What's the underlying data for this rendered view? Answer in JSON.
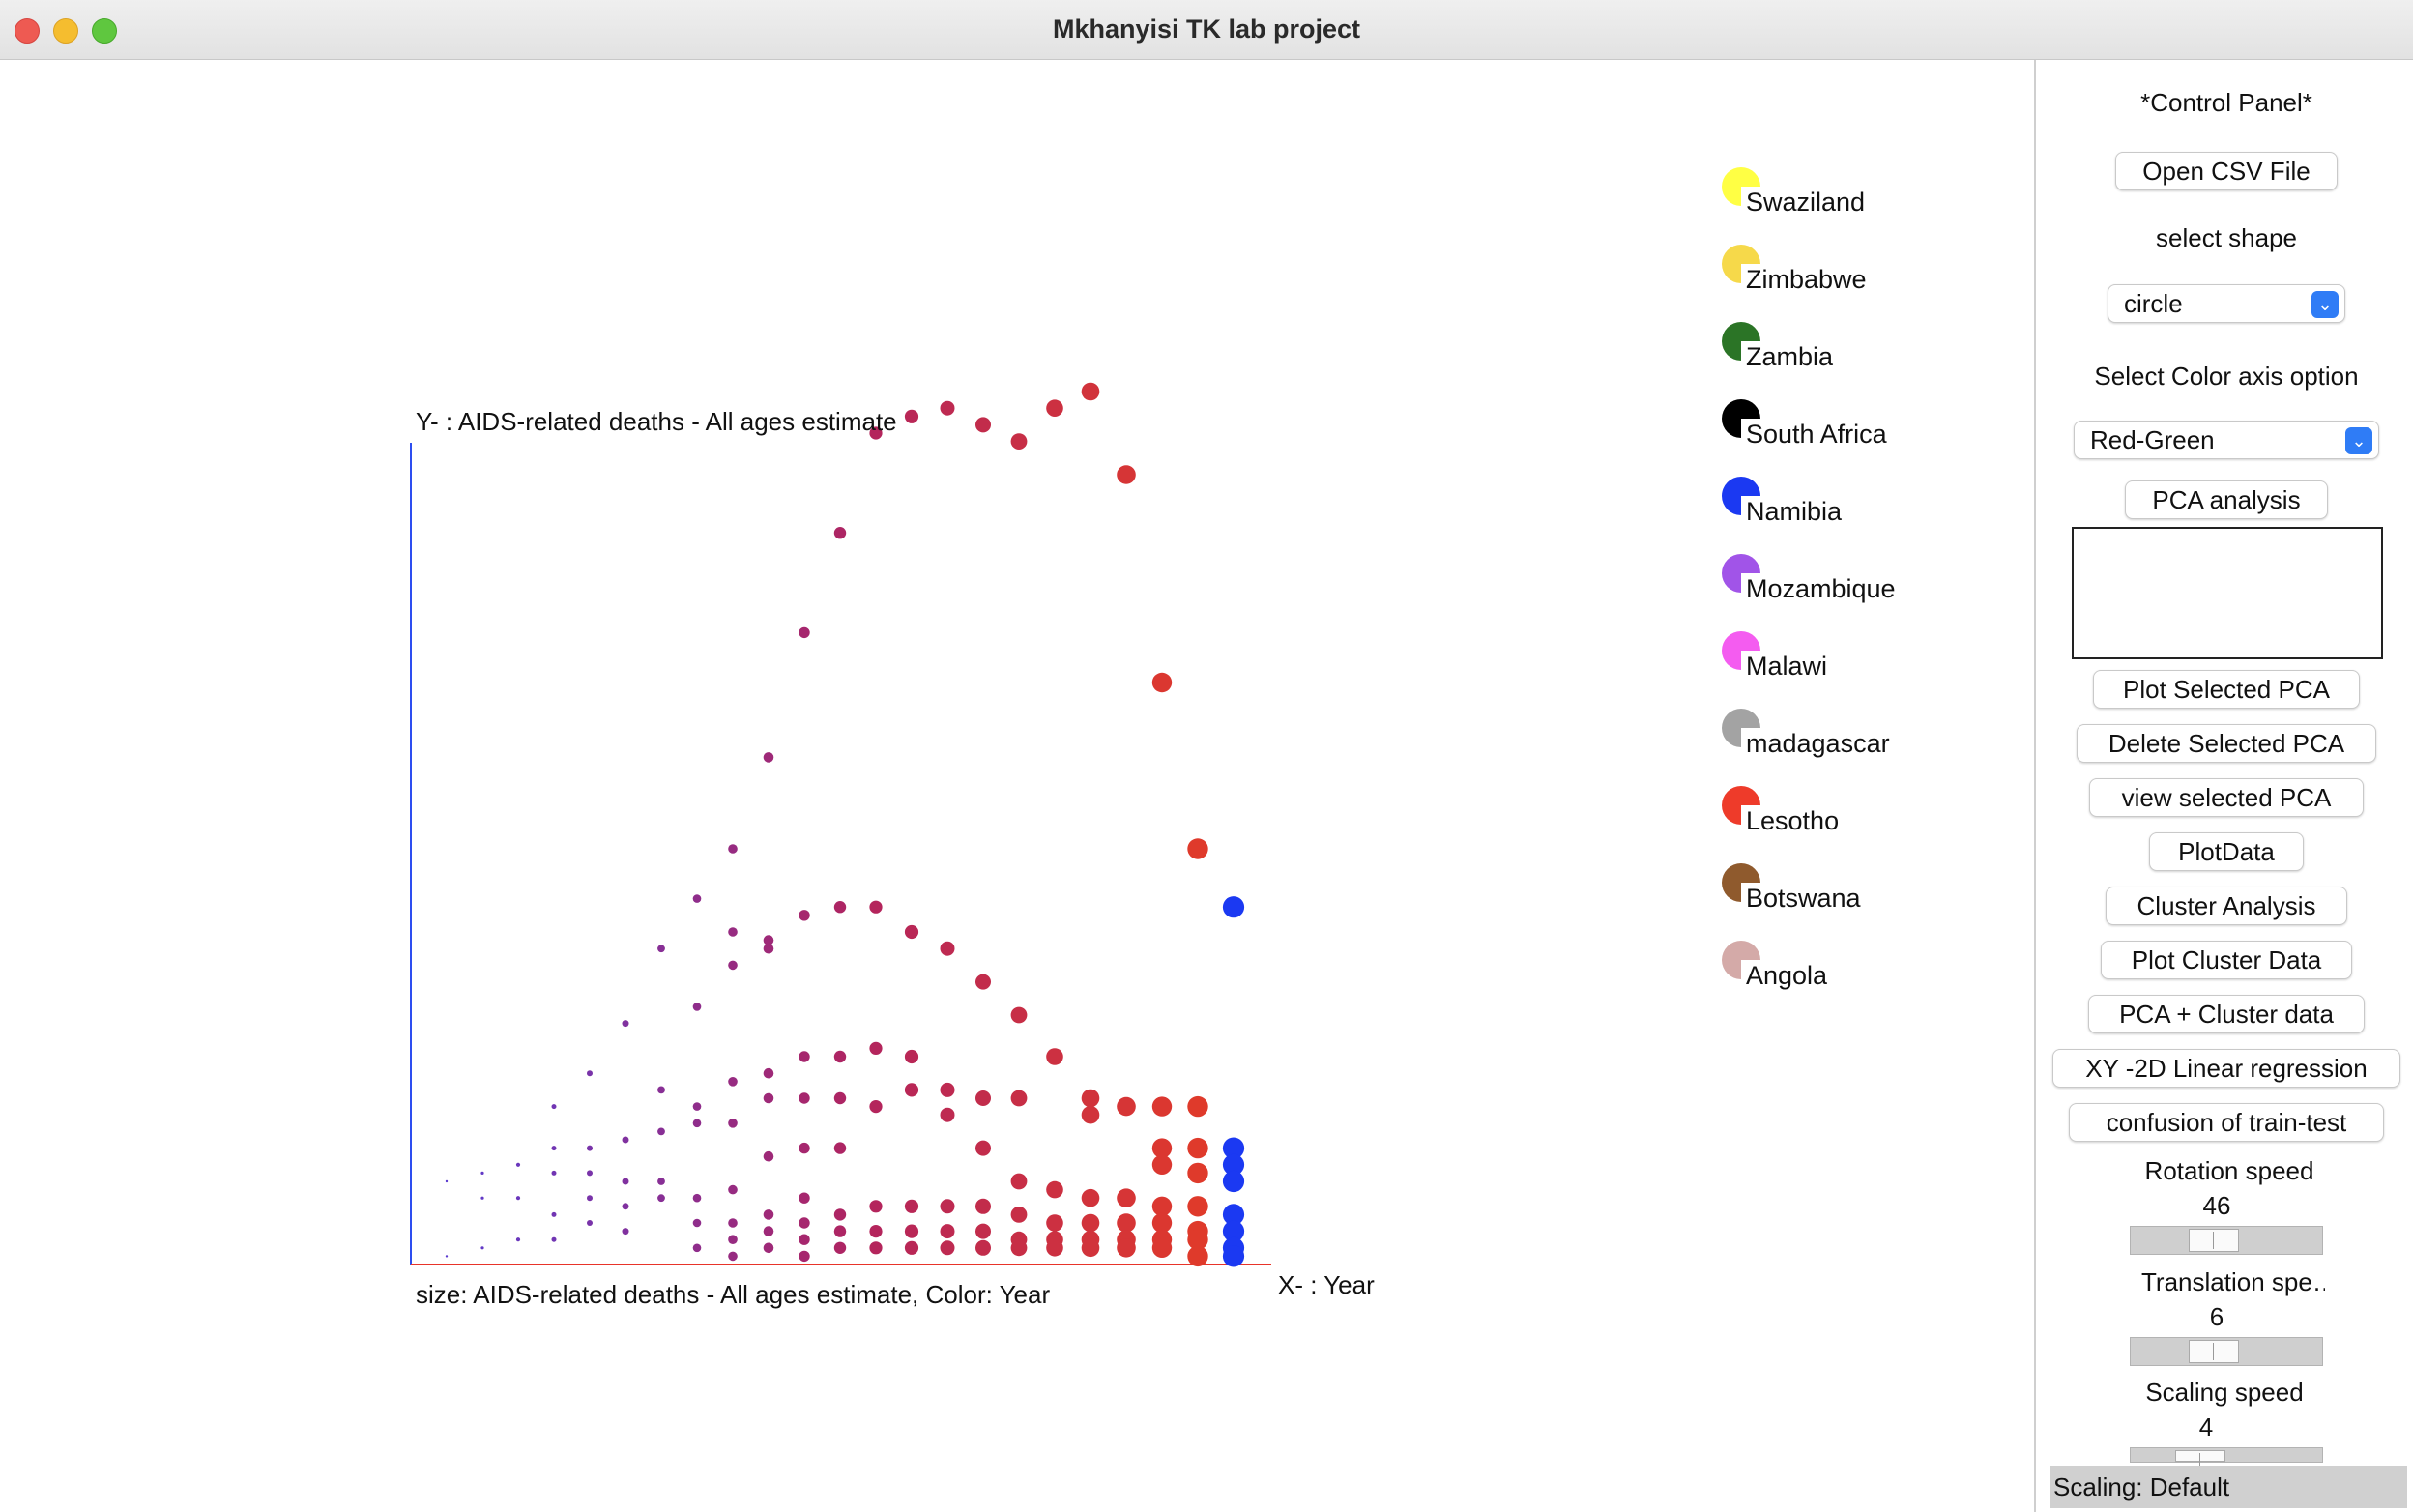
{
  "window": {
    "title": "Mkhanyisi TK lab project"
  },
  "plot": {
    "y_axis_label": "Y- : AIDS-related deaths - All ages estimate",
    "x_axis_label": "X- : Year",
    "caption": "size: AIDS-related deaths - All ages estimate, Color:  Year"
  },
  "legend": [
    {
      "name": "Swaziland",
      "color": "#ffff44"
    },
    {
      "name": "Zimbabwe",
      "color": "#f6d94a"
    },
    {
      "name": "Zambia",
      "color": "#2b7426"
    },
    {
      "name": "South Africa",
      "color": "#000000"
    },
    {
      "name": "Namibia",
      "color": "#1b39f2"
    },
    {
      "name": "Mozambique",
      "color": "#a154e8"
    },
    {
      "name": "Malawi",
      "color": "#f45cf0"
    },
    {
      "name": "madagascar",
      "color": "#a3a3a3"
    },
    {
      "name": "Lesotho",
      "color": "#ee3b2a"
    },
    {
      "name": "Botswana",
      "color": "#8f5a2d"
    },
    {
      "name": "Angola",
      "color": "#d4aaa8"
    }
  ],
  "panel": {
    "heading": "*Control Panel*",
    "open_csv": "Open CSV File",
    "shape_label": "select shape",
    "shape_value": "circle",
    "color_label": "Select Color axis option",
    "color_value": "Red-Green",
    "pca_analysis": "PCA analysis",
    "plot_selected_pca": "Plot Selected PCA",
    "delete_selected_pca": "Delete Selected PCA",
    "view_selected_pca": "view selected PCA",
    "plot_data": "PlotData",
    "cluster_analysis": "Cluster Analysis",
    "plot_cluster_data": "Plot Cluster Data",
    "pca_cluster_data": "PCA + Cluster data",
    "xy_regression": "XY -2D Linear regression",
    "confusion": "confusion of train-test",
    "rotation_label": "Rotation speed",
    "rotation_value": 46,
    "translation_label": "Translation spe…",
    "translation_value": 6,
    "scaling_label": "Scaling speed",
    "scaling_value": 4,
    "status": "Scaling: Default"
  },
  "chart_data": {
    "type": "scatter",
    "xlabel": "X- : Year",
    "ylabel": "Y- : AIDS-related deaths - All ages estimate",
    "size_encoding": "AIDS-related deaths - All ages estimate",
    "color_encoding": "Year",
    "color_scale": [
      "#5b3bd0",
      "#b2245e",
      "#e03a2a",
      "#1b39f2"
    ],
    "y_unit": "fraction of axis height",
    "columns": [
      {
        "col": 1,
        "y": [
          0.1,
          0.01
        ]
      },
      {
        "col": 2,
        "y": [
          0.11,
          0.08,
          0.02
        ]
      },
      {
        "col": 3,
        "y": [
          0.12,
          0.08,
          0.03
        ]
      },
      {
        "col": 4,
        "y": [
          0.19,
          0.14,
          0.11,
          0.06,
          0.03
        ]
      },
      {
        "col": 5,
        "y": [
          0.23,
          0.14,
          0.11,
          0.08,
          0.05
        ]
      },
      {
        "col": 6,
        "y": [
          0.29,
          0.15,
          0.1,
          0.07,
          0.04
        ]
      },
      {
        "col": 7,
        "y": [
          0.38,
          0.21,
          0.16,
          0.1,
          0.08
        ]
      },
      {
        "col": 8,
        "y": [
          0.44,
          0.31,
          0.19,
          0.17,
          0.08,
          0.05,
          0.02
        ]
      },
      {
        "col": 9,
        "y": [
          0.5,
          0.4,
          0.36,
          0.22,
          0.17,
          0.09,
          0.05,
          0.03,
          0.01
        ]
      },
      {
        "col": 10,
        "y": [
          0.61,
          0.38,
          0.39,
          0.23,
          0.2,
          0.13,
          0.06,
          0.04,
          0.02
        ]
      },
      {
        "col": 11,
        "y": [
          0.76,
          0.42,
          0.25,
          0.2,
          0.14,
          0.08,
          0.05,
          0.03,
          0.01
        ]
      },
      {
        "col": 12,
        "y": [
          0.88,
          0.43,
          0.25,
          0.2,
          0.14,
          0.06,
          0.04,
          0.02
        ]
      },
      {
        "col": 13,
        "y": [
          1.0,
          0.43,
          0.26,
          0.19,
          0.07,
          0.04,
          0.02
        ]
      },
      {
        "col": 14,
        "y": [
          1.02,
          0.4,
          0.25,
          0.21,
          0.07,
          0.04,
          0.02
        ]
      },
      {
        "col": 15,
        "y": [
          1.03,
          0.38,
          0.21,
          0.18,
          0.07,
          0.04,
          0.02
        ]
      },
      {
        "col": 16,
        "y": [
          1.01,
          0.34,
          0.2,
          0.14,
          0.07,
          0.04,
          0.02
        ]
      },
      {
        "col": 17,
        "y": [
          0.99,
          0.3,
          0.2,
          0.1,
          0.06,
          0.03,
          0.02
        ]
      },
      {
        "col": 18,
        "y": [
          1.03,
          0.25,
          0.09,
          0.05,
          0.03,
          0.02
        ]
      },
      {
        "col": 19,
        "y": [
          1.05,
          0.2,
          0.18,
          0.08,
          0.05,
          0.03,
          0.02
        ]
      },
      {
        "col": 20,
        "y": [
          0.95,
          0.19,
          0.08,
          0.05,
          0.03,
          0.02
        ]
      },
      {
        "col": 21,
        "y": [
          0.7,
          0.19,
          0.14,
          0.12,
          0.07,
          0.05,
          0.03,
          0.02
        ]
      },
      {
        "col": 22,
        "y": [
          0.5,
          0.19,
          0.14,
          0.11,
          0.07,
          0.04,
          0.03,
          0.01
        ]
      },
      {
        "col": 23,
        "y": [
          0.43,
          0.14,
          0.12,
          0.1,
          0.06,
          0.04,
          0.02,
          0.01
        ]
      }
    ]
  }
}
